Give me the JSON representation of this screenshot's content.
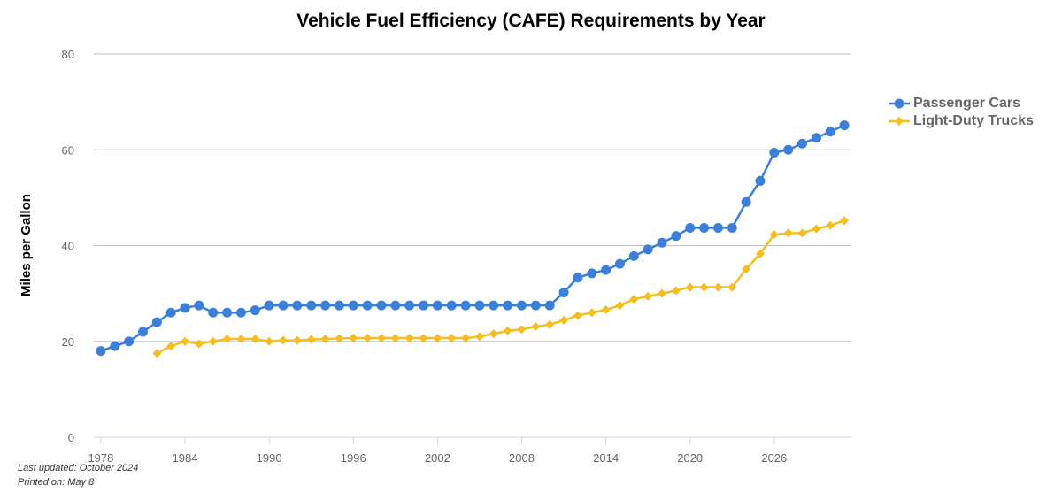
{
  "chart_data": {
    "type": "line",
    "title": "Vehicle Fuel Efficiency (CAFE) Requirements by Year",
    "y_label": "Miles per Gallon",
    "x": [
      1978,
      1979,
      1980,
      1981,
      1982,
      1983,
      1984,
      1985,
      1986,
      1987,
      1988,
      1989,
      1990,
      1991,
      1992,
      1993,
      1994,
      1995,
      1996,
      1997,
      1998,
      1999,
      2000,
      2001,
      2002,
      2003,
      2004,
      2005,
      2006,
      2007,
      2008,
      2009,
      2010,
      2011,
      2012,
      2013,
      2014,
      2015,
      2016,
      2017,
      2018,
      2019,
      2020,
      2021,
      2022,
      2023,
      2024,
      2025,
      2026,
      2027,
      2028,
      2029,
      2030,
      2031
    ],
    "series": [
      {
        "name": "Passenger Cars",
        "color": "#3a7fd9",
        "marker": "circle",
        "values": [
          18.0,
          19.0,
          20.0,
          22.0,
          24.0,
          26.0,
          27.0,
          27.5,
          26.0,
          26.0,
          26.0,
          26.5,
          27.5,
          27.5,
          27.5,
          27.5,
          27.5,
          27.5,
          27.5,
          27.5,
          27.5,
          27.5,
          27.5,
          27.5,
          27.5,
          27.5,
          27.5,
          27.5,
          27.5,
          27.5,
          27.5,
          27.5,
          27.5,
          30.2,
          33.3,
          34.2,
          34.9,
          36.2,
          37.8,
          39.2,
          40.6,
          42.0,
          43.7,
          43.7,
          43.7,
          43.7,
          49.1,
          53.5,
          59.4,
          60.0,
          61.3,
          62.5,
          63.8,
          65.1
        ]
      },
      {
        "name": "Light-Duty Trucks",
        "color": "#f5bd1f",
        "marker": "diamond",
        "values": [
          null,
          null,
          null,
          null,
          17.5,
          19.0,
          20.0,
          19.5,
          20.0,
          20.5,
          20.5,
          20.5,
          20.0,
          20.2,
          20.2,
          20.4,
          20.5,
          20.6,
          20.7,
          20.7,
          20.7,
          20.7,
          20.7,
          20.7,
          20.7,
          20.7,
          20.7,
          21.0,
          21.6,
          22.2,
          22.5,
          23.1,
          23.5,
          24.4,
          25.4,
          26.0,
          26.6,
          27.5,
          28.8,
          29.4,
          30.0,
          30.6,
          31.3,
          31.3,
          31.3,
          31.3,
          35.1,
          38.3,
          42.3,
          42.6,
          42.6,
          43.5,
          44.2,
          45.2
        ]
      }
    ],
    "xlim": [
      1977.5,
      2031.5
    ],
    "xticks": [
      1978,
      1984,
      1990,
      1996,
      2002,
      2008,
      2014,
      2020,
      2026
    ],
    "ylim": [
      0,
      80
    ],
    "yticks": [
      0,
      20,
      40,
      60,
      80
    ],
    "grid": true,
    "legend": "right",
    "notes": [
      "Last updated: October 2024",
      "Printed on: May 8"
    ]
  }
}
